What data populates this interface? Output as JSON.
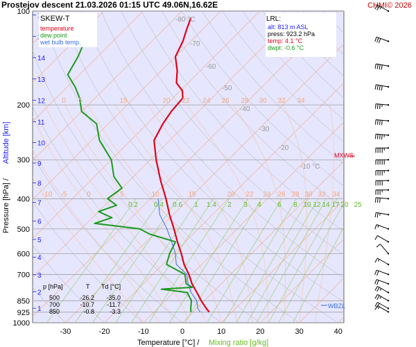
{
  "header": {
    "title": "Prostejov   descent  21.03.2026 01:15 UTC  49.06N,16.62E",
    "copyright": "CHMI© 2026"
  },
  "legend": {
    "title": "SKEW-T",
    "items": [
      {
        "label": "temperature",
        "color": "#e0001a"
      },
      {
        "label": "dew point",
        "color": "#1a9a1a"
      },
      {
        "label": "wet bulb temp.",
        "color": "#3a6fe0"
      }
    ]
  },
  "lrl": {
    "title": "LRL:",
    "alt": "alt: 813 m ASL",
    "press": "press: 923.2 hPa",
    "temp": "temp: 4.1 °C",
    "dwpt": "dwpt: -0.6 °C"
  },
  "table": {
    "headers": [
      "p [hPa]",
      "T",
      "Td [°C]"
    ],
    "rows": [
      [
        "500",
        "-26.2",
        "-35.0"
      ],
      [
        "700",
        "-10.7",
        "-11.7"
      ],
      [
        "850",
        "-0.8",
        "-3.3"
      ]
    ]
  },
  "axes": {
    "xlabel_main": "Temperature [°C]  /",
    "xlabel_mix": "Mixing ratio [g/kg]",
    "ylabel_pressure": "Pressure [hPa]  /",
    "ylabel_alt": "Altitude [km]",
    "mxws_label": "MXWS",
    "wbzl_label": "WBZL"
  },
  "colors": {
    "temperature": "#e0001a",
    "dewpoint": "#1a9a1a",
    "wetbulb": "#3a6fe0",
    "isotherm": "#f3b08a",
    "dry_adiabat": "#c0c0c0",
    "moist_adiabat": "#f6c9a8",
    "mixing_ratio": "#9ad36a",
    "isobar": "#a0a0a0",
    "plot_bg": "#e6e6ff"
  },
  "chart_data": {
    "type": "line",
    "skew": true,
    "xlim": [
      -35,
      40
    ],
    "pressure_range": [
      1000,
      100
    ],
    "x_ticks": [
      -30,
      -20,
      -10,
      0,
      10,
      20,
      30,
      40
    ],
    "pressure_ticks": [
      100,
      200,
      300,
      400,
      500,
      600,
      700,
      850,
      925,
      1000
    ],
    "altitude_ticks_km": [
      1,
      2,
      3,
      4,
      5,
      6,
      7,
      8,
      9,
      10,
      11,
      12,
      13,
      14,
      15,
      16
    ],
    "isotherm_labels": [
      "-80 °C",
      "-70",
      "-60",
      "-50",
      "-40",
      "-30",
      "-20",
      "-10 °C"
    ],
    "isotherm_top_labels": [
      "0",
      "5",
      "15",
      "20",
      "22",
      "24",
      "26",
      "28",
      "30",
      "32",
      "34"
    ],
    "isotherm_lower_labels": [
      "-10",
      "-5",
      "0",
      "5",
      "10",
      "15",
      "20",
      "22",
      "24",
      "26",
      "28",
      "30",
      "32",
      "34"
    ],
    "mixing_ratio_labels": [
      "0.2",
      "0.4",
      "0.6",
      "1",
      "1.4",
      "2",
      "3",
      "4",
      "6",
      "8",
      "10",
      "12",
      "14",
      "17",
      "20",
      "25"
    ],
    "series": [
      {
        "name": "temperature",
        "points": [
          {
            "p": 923,
            "t": 4.1
          },
          {
            "p": 900,
            "t": 2.5
          },
          {
            "p": 850,
            "t": -0.8
          },
          {
            "p": 800,
            "t": -4.0
          },
          {
            "p": 750,
            "t": -7.5
          },
          {
            "p": 700,
            "t": -10.7
          },
          {
            "p": 650,
            "t": -14.5
          },
          {
            "p": 600,
            "t": -18.0
          },
          {
            "p": 550,
            "t": -22.0
          },
          {
            "p": 500,
            "t": -26.2
          },
          {
            "p": 450,
            "t": -31.0
          },
          {
            "p": 400,
            "t": -36.0
          },
          {
            "p": 350,
            "t": -42.0
          },
          {
            "p": 300,
            "t": -48.5
          },
          {
            "p": 260,
            "t": -54.0
          },
          {
            "p": 230,
            "t": -56.0
          },
          {
            "p": 210,
            "t": -57.0
          },
          {
            "p": 190,
            "t": -57.5
          },
          {
            "p": 180,
            "t": -59.5
          },
          {
            "p": 170,
            "t": -63.0
          },
          {
            "p": 155,
            "t": -66.0
          },
          {
            "p": 140,
            "t": -70.0
          },
          {
            "p": 125,
            "t": -72.0
          },
          {
            "p": 115,
            "t": -74.0
          },
          {
            "p": 105,
            "t": -76.0
          }
        ]
      },
      {
        "name": "dew point",
        "points": [
          {
            "p": 923,
            "t": -0.6
          },
          {
            "p": 900,
            "t": -1.5
          },
          {
            "p": 850,
            "t": -3.3
          },
          {
            "p": 800,
            "t": -6.5
          },
          {
            "p": 780,
            "t": -14.0
          },
          {
            "p": 770,
            "t": -6.5
          },
          {
            "p": 750,
            "t": -9.0
          },
          {
            "p": 700,
            "t": -11.7
          },
          {
            "p": 650,
            "t": -19.0
          },
          {
            "p": 600,
            "t": -21.0
          },
          {
            "p": 550,
            "t": -22.5
          },
          {
            "p": 520,
            "t": -31.0
          },
          {
            "p": 500,
            "t": -35.0
          },
          {
            "p": 480,
            "t": -48.0
          },
          {
            "p": 460,
            "t": -45.0
          },
          {
            "p": 440,
            "t": -50.0
          },
          {
            "p": 420,
            "t": -47.0
          },
          {
            "p": 400,
            "t": -51.0
          },
          {
            "p": 370,
            "t": -50.0
          },
          {
            "p": 340,
            "t": -55.0
          },
          {
            "p": 300,
            "t": -60.0
          },
          {
            "p": 260,
            "t": -68.0
          },
          {
            "p": 230,
            "t": -73.0
          },
          {
            "p": 210,
            "t": -80.0
          },
          {
            "p": 190,
            "t": -84.0
          },
          {
            "p": 175,
            "t": -88.0
          },
          {
            "p": 160,
            "t": -93.0
          },
          {
            "p": 140,
            "t": -95.0
          },
          {
            "p": 120,
            "t": -98.0
          },
          {
            "p": 105,
            "t": -101.0
          }
        ]
      },
      {
        "name": "wet bulb temp.",
        "points": [
          {
            "p": 923,
            "t": 1.8
          },
          {
            "p": 900,
            "t": 0.3
          },
          {
            "p": 850,
            "t": -2.0
          },
          {
            "p": 800,
            "t": -5.5
          },
          {
            "p": 750,
            "t": -8.5
          },
          {
            "p": 700,
            "t": -11.2
          },
          {
            "p": 650,
            "t": -16.5
          },
          {
            "p": 600,
            "t": -19.5
          },
          {
            "p": 550,
            "t": -23.5
          },
          {
            "p": 500,
            "t": -28.0
          },
          {
            "p": 450,
            "t": -33.5
          },
          {
            "p": 400,
            "t": -38.0
          }
        ]
      }
    ],
    "wind_barbs": [
      {
        "p": 100,
        "dir": 300,
        "kt": 25
      },
      {
        "p": 125,
        "dir": 290,
        "kt": 30
      },
      {
        "p": 150,
        "dir": 280,
        "kt": 40
      },
      {
        "p": 175,
        "dir": 280,
        "kt": 40
      },
      {
        "p": 200,
        "dir": 275,
        "kt": 35
      },
      {
        "p": 225,
        "dir": 275,
        "kt": 40
      },
      {
        "p": 250,
        "dir": 275,
        "kt": 45
      },
      {
        "p": 275,
        "dir": 270,
        "kt": 45
      },
      {
        "p": 300,
        "dir": 270,
        "kt": 50
      },
      {
        "p": 325,
        "dir": 270,
        "kt": 45
      },
      {
        "p": 350,
        "dir": 270,
        "kt": 40
      },
      {
        "p": 375,
        "dir": 270,
        "kt": 35
      },
      {
        "p": 400,
        "dir": 275,
        "kt": 30
      },
      {
        "p": 450,
        "dir": 280,
        "kt": 25
      },
      {
        "p": 500,
        "dir": 290,
        "kt": 15
      },
      {
        "p": 550,
        "dir": 300,
        "kt": 10
      },
      {
        "p": 600,
        "dir": 320,
        "kt": 10
      },
      {
        "p": 650,
        "dir": 300,
        "kt": 15
      },
      {
        "p": 700,
        "dir": 290,
        "kt": 20
      },
      {
        "p": 750,
        "dir": 290,
        "kt": 20
      },
      {
        "p": 800,
        "dir": 300,
        "kt": 25
      },
      {
        "p": 850,
        "dir": 300,
        "kt": 25
      },
      {
        "p": 900,
        "dir": 300,
        "kt": 20
      },
      {
        "p": 923,
        "dir": 300,
        "kt": 15
      }
    ]
  }
}
